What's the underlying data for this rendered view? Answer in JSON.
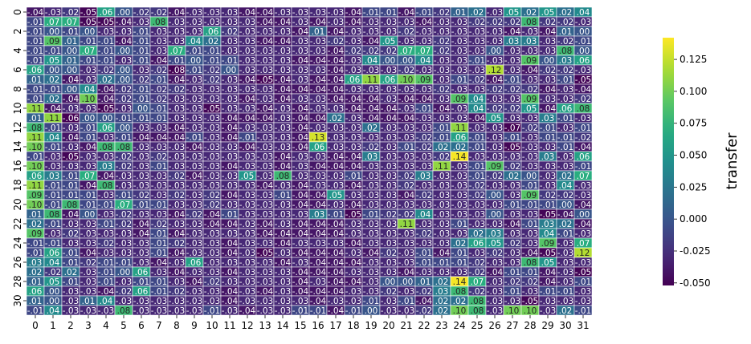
{
  "chart_data": {
    "type": "heatmap",
    "title": "",
    "xlabel": "",
    "ylabel": "",
    "colorbar_label": "transfer",
    "colormap": "viridis",
    "vmin": -0.052,
    "vmax": 0.142,
    "colorbar_ticks": [
      "0.125",
      "0.100",
      "0.075",
      "0.050",
      "0.025",
      "0.000",
      "-0.025",
      "-0.050"
    ],
    "colorbar_tick_values": [
      0.125,
      0.1,
      0.075,
      0.05,
      0.025,
      0.0,
      -0.025,
      -0.05
    ],
    "x_ticks": [
      "0",
      "1",
      "2",
      "3",
      "4",
      "5",
      "6",
      "7",
      "8",
      "9",
      "10",
      "11",
      "12",
      "13",
      "14",
      "15",
      "16",
      "17",
      "18",
      "19",
      "20",
      "21",
      "22",
      "23",
      "24",
      "25",
      "26",
      "27",
      "28",
      "29",
      "30",
      "31"
    ],
    "y_ticks": [
      "0",
      "2",
      "4",
      "6",
      "8",
      "10",
      "12",
      "14",
      "16",
      "18",
      "20",
      "22",
      "24",
      "26",
      "28",
      "30"
    ],
    "rows": 32,
    "cols": 32,
    "values": [
      [
        -0.04,
        -0.03,
        -0.02,
        -0.05,
        0.06,
        0.0,
        -0.02,
        -0.02,
        -0.04,
        -0.03,
        -0.03,
        -0.03,
        -0.04,
        -0.04,
        -0.03,
        -0.03,
        -0.03,
        -0.03,
        -0.04,
        -0.01,
        -0.01,
        -0.04,
        -0.01,
        -0.02,
        0.01,
        0.02,
        -0.03,
        0.05,
        0.02,
        0.05,
        0.02,
        0.04
      ],
      [
        -0.01,
        0.07,
        0.07,
        -0.05,
        -0.05,
        -0.04,
        -0.03,
        0.08,
        -0.03,
        -0.03,
        -0.03,
        -0.03,
        -0.03,
        -0.04,
        -0.04,
        -0.03,
        -0.04,
        -0.03,
        -0.04,
        -0.03,
        -0.03,
        -0.03,
        -0.04,
        -0.03,
        -0.03,
        -0.02,
        -0.02,
        -0.02,
        0.08,
        -0.02,
        -0.02,
        -0.03
      ],
      [
        -0.01,
        0.0,
        -0.01,
        0.0,
        -0.03,
        -0.03,
        -0.01,
        -0.03,
        -0.03,
        -0.03,
        0.06,
        -0.02,
        -0.03,
        -0.03,
        -0.03,
        -0.04,
        0.01,
        -0.04,
        -0.03,
        -0.03,
        -0.03,
        -0.02,
        -0.03,
        -0.03,
        -0.03,
        -0.03,
        -0.03,
        -0.04,
        -0.03,
        -0.04,
        0.01,
        0.0
      ],
      [
        -0.01,
        0.09,
        0.01,
        -0.01,
        -0.01,
        -0.04,
        -0.01,
        -0.03,
        -0.03,
        0.04,
        0.02,
        -0.03,
        -0.03,
        -0.04,
        -0.04,
        -0.03,
        -0.03,
        -0.02,
        -0.03,
        -0.04,
        0.05,
        -0.03,
        -0.03,
        -0.02,
        -0.03,
        -0.03,
        -0.03,
        0.03,
        0.03,
        -0.03,
        -0.02,
        -0.01
      ],
      [
        -0.01,
        -0.01,
        0.0,
        0.07,
        -0.01,
        0.0,
        -0.01,
        -0.03,
        0.07,
        -0.01,
        -0.01,
        -0.03,
        -0.03,
        -0.03,
        -0.03,
        -0.03,
        -0.03,
        -0.04,
        -0.02,
        -0.02,
        -0.02,
        0.07,
        0.07,
        -0.02,
        -0.03,
        -0.03,
        -0.0,
        -0.03,
        -0.03,
        -0.03,
        0.08,
        0.0
      ],
      [
        -0.01,
        0.05,
        0.01,
        -0.01,
        -0.01,
        -0.03,
        -0.01,
        -0.04,
        -0.01,
        0.0,
        -0.01,
        -0.01,
        -0.03,
        -0.03,
        -0.03,
        -0.04,
        -0.04,
        -0.04,
        -0.03,
        0.04,
        0.0,
        -0.0,
        0.04,
        -0.03,
        -0.03,
        -0.01,
        -0.03,
        -0.03,
        0.09,
        0.0,
        0.03,
        0.06
      ],
      [
        0.06,
        0.0,
        -0.0,
        -0.03,
        -0.02,
        -0.0,
        -0.03,
        -0.02,
        -0.08,
        -0.01,
        -0.02,
        -0.0,
        -0.03,
        -0.03,
        -0.03,
        -0.03,
        -0.03,
        -0.04,
        -0.03,
        -0.03,
        -0.03,
        -0.02,
        -0.03,
        -0.03,
        -0.03,
        -0.03,
        0.12,
        -0.03,
        -0.04,
        -0.02,
        -0.02,
        -0.03
      ],
      [
        0.01,
        0.02,
        -0.04,
        -0.03,
        0.02,
        -0.0,
        -0.02,
        -0.01,
        -0.04,
        -0.03,
        -0.02,
        -0.03,
        -0.04,
        -0.05,
        -0.04,
        -0.03,
        -0.04,
        -0.04,
        0.06,
        0.11,
        0.06,
        0.1,
        0.09,
        -0.03,
        -0.01,
        -0.02,
        -0.04,
        -0.01,
        -0.03,
        -0.03,
        -0.01,
        -0.05
      ],
      [
        -0.01,
        -0.01,
        -0.0,
        0.04,
        -0.04,
        -0.02,
        -0.01,
        -0.02,
        -0.02,
        -0.03,
        -0.03,
        -0.03,
        -0.03,
        -0.03,
        -0.04,
        -0.04,
        -0.04,
        -0.04,
        -0.03,
        -0.03,
        -0.03,
        -0.03,
        -0.03,
        -0.02,
        -0.03,
        -0.03,
        -0.02,
        -0.02,
        -0.02,
        -0.04,
        -0.03,
        -0.04
      ],
      [
        -0.01,
        0.02,
        -0.04,
        0.1,
        -0.04,
        -0.02,
        -0.01,
        -0.02,
        -0.03,
        -0.03,
        -0.03,
        -0.03,
        -0.04,
        -0.03,
        -0.04,
        -0.03,
        -0.03,
        -0.04,
        -0.04,
        -0.04,
        -0.03,
        -0.04,
        -0.04,
        -0.03,
        0.09,
        0.04,
        -0.03,
        -0.03,
        0.09,
        -0.03,
        -0.03,
        -0.02
      ],
      [
        0.11,
        -0.04,
        -0.03,
        -0.03,
        -0.05,
        -0.03,
        -0.0,
        -0.01,
        -0.03,
        -0.03,
        -0.05,
        -0.03,
        -0.03,
        -0.04,
        -0.03,
        -0.04,
        -0.03,
        -0.03,
        -0.04,
        -0.04,
        -0.04,
        -0.03,
        -0.01,
        -0.04,
        -0.03,
        0.04,
        -0.02,
        -0.02,
        0.05,
        -0.04,
        0.06,
        0.08
      ],
      [
        0.01,
        0.11,
        -0.06,
        -0.0,
        -0.0,
        -0.01,
        -0.01,
        -0.01,
        -0.03,
        -0.03,
        -0.03,
        -0.04,
        -0.04,
        -0.04,
        -0.03,
        -0.04,
        -0.04,
        0.02,
        -0.03,
        -0.04,
        -0.04,
        -0.04,
        -0.03,
        -0.03,
        -0.03,
        -0.04,
        0.05,
        -0.03,
        -0.03,
        0.03,
        -0.01,
        -0.03
      ],
      [
        0.08,
        -0.01,
        -0.03,
        -0.01,
        0.06,
        -0.0,
        -0.03,
        -0.03,
        -0.04,
        -0.03,
        -0.03,
        -0.04,
        -0.03,
        -0.03,
        -0.03,
        -0.04,
        -0.03,
        -0.03,
        -0.03,
        0.02,
        -0.03,
        -0.03,
        -0.03,
        -0.01,
        0.11,
        -0.03,
        -0.03,
        -0.07,
        -0.02,
        -0.01,
        -0.03,
        -0.01
      ],
      [
        0.11,
        0.04,
        -0.04,
        -0.01,
        -0.03,
        -0.01,
        -0.04,
        -0.04,
        -0.04,
        -0.01,
        -0.03,
        -0.04,
        -0.01,
        -0.03,
        -0.03,
        -0.04,
        0.13,
        -0.03,
        -0.03,
        -0.03,
        -0.03,
        -0.03,
        -0.02,
        -0.01,
        0.06,
        -0.01,
        -0.03,
        -0.01,
        -0.03,
        -0.01,
        -0.01,
        -0.02
      ],
      [
        0.1,
        -0.01,
        -0.03,
        -0.04,
        0.08,
        0.08,
        -0.03,
        -0.03,
        -0.03,
        -0.04,
        -0.03,
        -0.03,
        -0.04,
        -0.03,
        -0.03,
        -0.04,
        0.06,
        -0.03,
        -0.03,
        -0.02,
        -0.03,
        -0.01,
        -0.02,
        0.02,
        0.02,
        -0.01,
        -0.03,
        -0.05,
        -0.03,
        -0.03,
        -0.01,
        -0.04
      ],
      [
        -0.01,
        -0.03,
        -0.05,
        -0.03,
        -0.03,
        -0.02,
        -0.03,
        -0.02,
        -0.03,
        -0.03,
        -0.03,
        -0.03,
        -0.03,
        -0.03,
        -0.04,
        -0.03,
        -0.03,
        -0.04,
        -0.04,
        0.03,
        -0.03,
        -0.03,
        -0.03,
        -0.02,
        0.14,
        -0.03,
        -0.03,
        -0.03,
        -0.03,
        0.03,
        -0.03,
        0.06
      ],
      [
        0.1,
        -0.03,
        -0.03,
        -0.03,
        0.03,
        -0.02,
        -0.03,
        -0.01,
        -0.03,
        -0.03,
        -0.03,
        -0.04,
        -0.03,
        -0.03,
        -0.04,
        -0.03,
        -0.04,
        -0.04,
        -0.04,
        -0.03,
        -0.03,
        -0.03,
        -0.03,
        0.11,
        -0.03,
        -0.01,
        0.09,
        -0.02,
        -0.03,
        -0.03,
        -0.03,
        -0.01
      ],
      [
        0.06,
        0.03,
        -0.01,
        0.07,
        -0.04,
        -0.03,
        -0.03,
        -0.03,
        -0.02,
        -0.04,
        -0.03,
        -0.03,
        0.05,
        -0.03,
        0.08,
        -0.03,
        -0.03,
        -0.03,
        -0.01,
        -0.03,
        -0.03,
        -0.02,
        0.03,
        -0.03,
        -0.03,
        -0.01,
        -0.02,
        0.02,
        -0.0,
        -0.03,
        0.02,
        0.07
      ],
      [
        0.11,
        -0.01,
        -0.01,
        -0.04,
        0.08,
        -0.03,
        -0.03,
        -0.03,
        -0.03,
        -0.03,
        -0.03,
        -0.03,
        -0.03,
        -0.04,
        -0.03,
        -0.04,
        -0.03,
        -0.03,
        -0.04,
        -0.03,
        -0.03,
        -0.02,
        -0.03,
        -0.03,
        -0.03,
        -0.02,
        -0.03,
        -0.03,
        -0.01,
        -0.03,
        0.04,
        -0.03
      ],
      [
        0.09,
        -0.01,
        -0.01,
        -0.01,
        -0.03,
        -0.01,
        -0.02,
        -0.03,
        -0.02,
        -0.03,
        -0.02,
        -0.04,
        -0.03,
        -0.03,
        -0.01,
        -0.04,
        -0.04,
        0.05,
        -0.03,
        -0.03,
        -0.03,
        -0.04,
        -0.02,
        -0.03,
        -0.03,
        -0.02,
        -0.0,
        -0.03,
        0.09,
        -0.02,
        -0.02,
        -0.03
      ],
      [
        0.1,
        -0.01,
        0.08,
        -0.01,
        -0.01,
        0.07,
        -0.01,
        -0.01,
        -0.03,
        -0.03,
        -0.02,
        -0.03,
        -0.03,
        -0.03,
        -0.03,
        -0.04,
        -0.04,
        -0.03,
        -0.04,
        -0.03,
        -0.03,
        -0.03,
        -0.03,
        -0.03,
        -0.03,
        -0.03,
        -0.03,
        -0.01,
        -0.01,
        -0.01,
        -0.0,
        -0.04
      ],
      [
        0.01,
        0.08,
        -0.04,
        -0.0,
        -0.03,
        -0.02,
        -0.03,
        -0.03,
        -0.04,
        -0.02,
        -0.04,
        -0.01,
        -0.03,
        -0.03,
        -0.03,
        -0.03,
        0.03,
        -0.01,
        -0.05,
        -0.01,
        -0.02,
        -0.02,
        0.04,
        -0.03,
        -0.03,
        -0.03,
        -0.0,
        -0.03,
        -0.03,
        -0.05,
        -0.04,
        -0.0
      ],
      [
        0.02,
        -0.01,
        -0.03,
        -0.03,
        -0.01,
        -0.02,
        -0.04,
        -0.02,
        -0.03,
        -0.03,
        -0.04,
        -0.04,
        -0.03,
        -0.04,
        -0.03,
        -0.04,
        -0.04,
        -0.04,
        -0.03,
        -0.03,
        -0.03,
        0.11,
        -0.03,
        -0.03,
        -0.01,
        -0.03,
        -0.03,
        -0.04,
        -0.01,
        0.03,
        0.02,
        -0.04
      ],
      [
        0.09,
        -0.03,
        -0.02,
        -0.03,
        -0.03,
        -0.03,
        -0.04,
        -0.01,
        -0.04,
        -0.03,
        -0.03,
        -0.03,
        -0.03,
        -0.04,
        -0.04,
        -0.04,
        -0.04,
        -0.04,
        -0.03,
        -0.03,
        -0.03,
        -0.03,
        -0.02,
        -0.03,
        -0.03,
        0.02,
        0.03,
        -0.03,
        -0.03,
        0.04,
        -0.01,
        -0.03
      ],
      [
        -0.01,
        -0.01,
        -0.03,
        -0.03,
        -0.02,
        -0.03,
        -0.03,
        -0.01,
        -0.02,
        -0.03,
        -0.03,
        -0.04,
        -0.03,
        -0.03,
        -0.04,
        -0.03,
        -0.03,
        -0.03,
        -0.04,
        -0.03,
        -0.03,
        -0.03,
        -0.03,
        -0.03,
        0.02,
        0.06,
        0.05,
        -0.02,
        -0.03,
        0.09,
        -0.03,
        0.07
      ],
      [
        -0.01,
        0.06,
        -0.01,
        -0.04,
        -0.03,
        -0.03,
        -0.03,
        -0.01,
        -0.04,
        -0.03,
        -0.03,
        -0.04,
        -0.03,
        -0.05,
        -0.03,
        -0.04,
        -0.04,
        -0.04,
        -0.03,
        -0.04,
        -0.02,
        -0.03,
        -0.01,
        -0.04,
        -0.01,
        -0.03,
        -0.02,
        -0.03,
        -0.04,
        -0.05,
        -0.03,
        0.12
      ],
      [
        0.03,
        0.04,
        -0.01,
        -0.02,
        -0.01,
        -0.01,
        -0.03,
        -0.04,
        -0.03,
        0.06,
        -0.03,
        -0.03,
        -0.03,
        -0.03,
        -0.04,
        -0.03,
        -0.04,
        -0.04,
        -0.04,
        -0.03,
        -0.03,
        -0.03,
        -0.01,
        -0.01,
        -0.01,
        -0.02,
        -0.03,
        -0.03,
        0.08,
        0.05,
        -0.03,
        -0.03
      ],
      [
        0.02,
        -0.02,
        0.02,
        -0.03,
        -0.01,
        -0.0,
        0.06,
        -0.03,
        -0.04,
        -0.03,
        -0.03,
        -0.04,
        -0.03,
        -0.03,
        -0.03,
        -0.04,
        -0.04,
        -0.04,
        -0.03,
        -0.03,
        -0.03,
        -0.04,
        -0.03,
        -0.03,
        -0.03,
        -0.02,
        -0.04,
        -0.01,
        -0.01,
        -0.04,
        -0.03,
        -0.05
      ],
      [
        0.01,
        0.05,
        -0.01,
        -0.03,
        -0.01,
        -0.03,
        -0.01,
        -0.01,
        -0.03,
        -0.04,
        -0.02,
        -0.03,
        -0.03,
        -0.03,
        -0.03,
        -0.04,
        -0.03,
        -0.04,
        -0.04,
        -0.03,
        0.0,
        0.0,
        0.01,
        0.02,
        0.14,
        0.07,
        -0.03,
        -0.02,
        -0.02,
        -0.04,
        -0.03,
        -0.01
      ],
      [
        0.06,
        -0.0,
        -0.03,
        -0.03,
        -0.04,
        -0.02,
        0.06,
        -0.01,
        -0.02,
        -0.03,
        -0.03,
        -0.04,
        -0.03,
        -0.04,
        -0.03,
        -0.04,
        -0.04,
        -0.04,
        -0.03,
        -0.03,
        -0.02,
        -0.03,
        -0.02,
        0.03,
        0.08,
        -0.02,
        -0.03,
        -0.01,
        -0.03,
        -0.01,
        -0.01,
        -0.03
      ],
      [
        0.01,
        0.0,
        -0.03,
        0.01,
        0.04,
        -0.03,
        -0.03,
        -0.03,
        -0.03,
        -0.03,
        -0.03,
        -0.04,
        -0.03,
        -0.03,
        -0.03,
        -0.03,
        -0.04,
        -0.03,
        -0.03,
        -0.01,
        -0.03,
        -0.01,
        -0.04,
        0.02,
        0.02,
        0.08,
        -0.03,
        -0.03,
        -0.05,
        -0.03,
        -0.03,
        -0.03
      ],
      [
        -0.01,
        0.04,
        -0.03,
        -0.03,
        -0.03,
        0.08,
        -0.03,
        -0.03,
        -0.03,
        -0.03,
        -0.01,
        -0.03,
        -0.04,
        -0.03,
        -0.03,
        -0.01,
        -0.01,
        -0.04,
        -0.01,
        0.0,
        -0.03,
        -0.03,
        -0.02,
        0.02,
        0.1,
        0.08,
        -0.03,
        0.1,
        0.1,
        -0.03,
        0.02,
        -0.01
      ]
    ]
  }
}
